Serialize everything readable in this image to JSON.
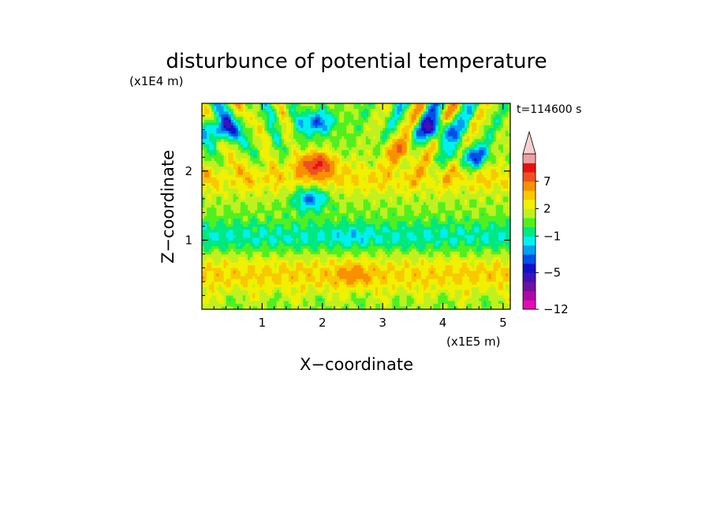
{
  "chart_data": {
    "type": "heatmap",
    "title": "disturbunce of potential temperature",
    "time_label": "t=114600 s",
    "xlabel": "X−coordinate",
    "ylabel": "Z−coordinate",
    "x_scale_note": "(x1E5 m)",
    "y_scale_note": "(x1E4 m)",
    "xlim": [
      0,
      5.12
    ],
    "ylim": [
      0,
      2.98
    ],
    "x_ticks": [
      {
        "value": 1,
        "label": "1"
      },
      {
        "value": 2,
        "label": "2"
      },
      {
        "value": 3,
        "label": "3"
      },
      {
        "value": 4,
        "label": "4"
      },
      {
        "value": 5,
        "label": "5"
      }
    ],
    "y_ticks": [
      {
        "value": 1,
        "label": "1"
      },
      {
        "value": 2,
        "label": "2"
      }
    ],
    "colorbar": {
      "levels": [
        -12,
        -10,
        -8,
        -6,
        -5,
        -4,
        -3,
        -2,
        -1,
        0,
        1,
        2,
        3,
        5,
        7,
        9,
        11
      ],
      "labels": [
        {
          "value": -12,
          "label": "−12"
        },
        {
          "value": -5,
          "label": "−5"
        },
        {
          "value": -1,
          "label": "−1"
        },
        {
          "value": 2,
          "label": "2"
        },
        {
          "value": 7,
          "label": "7"
        }
      ],
      "colors": [
        "#e010b0",
        "#b008a8",
        "#7010a0",
        "#4010b8",
        "#1010c8",
        "#0050e8",
        "#00a0f0",
        "#00f0f0",
        "#00e880",
        "#50f020",
        "#c0f020",
        "#f0f000",
        "#f8c800",
        "#f89000",
        "#f05020",
        "#e81010",
        "#f0a0a0",
        "#f8d0d0"
      ],
      "extend": "max"
    },
    "field_description": [
      {
        "x": 0.3,
        "z": 2.6,
        "value": -6
      },
      {
        "x": 1.9,
        "z": 2.7,
        "value": -5
      },
      {
        "x": 1.9,
        "z": 2.1,
        "value": 7
      },
      {
        "x": 1.8,
        "z": 1.6,
        "value": -5
      },
      {
        "x": 3.9,
        "z": 2.6,
        "value": -6
      },
      {
        "x": 4.5,
        "z": 2.2,
        "value": -5
      },
      {
        "x": 3.3,
        "z": 2.3,
        "value": 4
      },
      {
        "x": 2.5,
        "z": 1.05,
        "value": -1
      },
      {
        "x": 2.5,
        "z": 0.5,
        "value": 2
      }
    ]
  }
}
